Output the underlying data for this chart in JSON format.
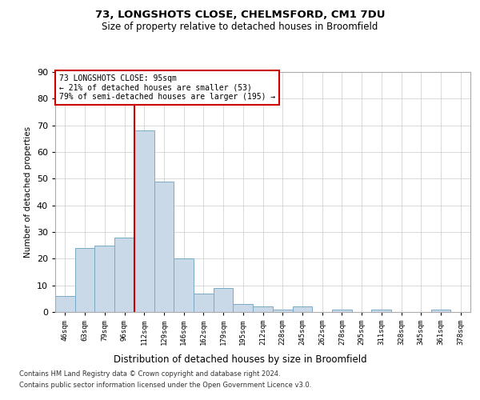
{
  "title1": "73, LONGSHOTS CLOSE, CHELMSFORD, CM1 7DU",
  "title2": "Size of property relative to detached houses in Broomfield",
  "xlabel": "Distribution of detached houses by size in Broomfield",
  "ylabel": "Number of detached properties",
  "footer1": "Contains HM Land Registry data © Crown copyright and database right 2024.",
  "footer2": "Contains public sector information licensed under the Open Government Licence v3.0.",
  "annotation_title": "73 LONGSHOTS CLOSE: 95sqm",
  "annotation_line1": "← 21% of detached houses are smaller (53)",
  "annotation_line2": "79% of semi-detached houses are larger (195) →",
  "bar_color": "#c9d9e8",
  "bar_edge_color": "#7aaac8",
  "vline_color": "#cc0000",
  "annotation_box_color": "#ffffff",
  "annotation_box_edge": "#cc0000",
  "categories": [
    "46sqm",
    "63sqm",
    "79sqm",
    "96sqm",
    "112sqm",
    "129sqm",
    "146sqm",
    "162sqm",
    "179sqm",
    "195sqm",
    "212sqm",
    "228sqm",
    "245sqm",
    "262sqm",
    "278sqm",
    "295sqm",
    "311sqm",
    "328sqm",
    "345sqm",
    "361sqm",
    "378sqm"
  ],
  "values": [
    6,
    24,
    25,
    28,
    68,
    49,
    20,
    7,
    9,
    3,
    2,
    1,
    2,
    0,
    1,
    0,
    1,
    0,
    0,
    1,
    0
  ],
  "ylim": [
    0,
    90
  ],
  "yticks": [
    0,
    10,
    20,
    30,
    40,
    50,
    60,
    70,
    80,
    90
  ],
  "vline_x": 3.5,
  "background_color": "#ffffff",
  "grid_color": "#cccccc"
}
